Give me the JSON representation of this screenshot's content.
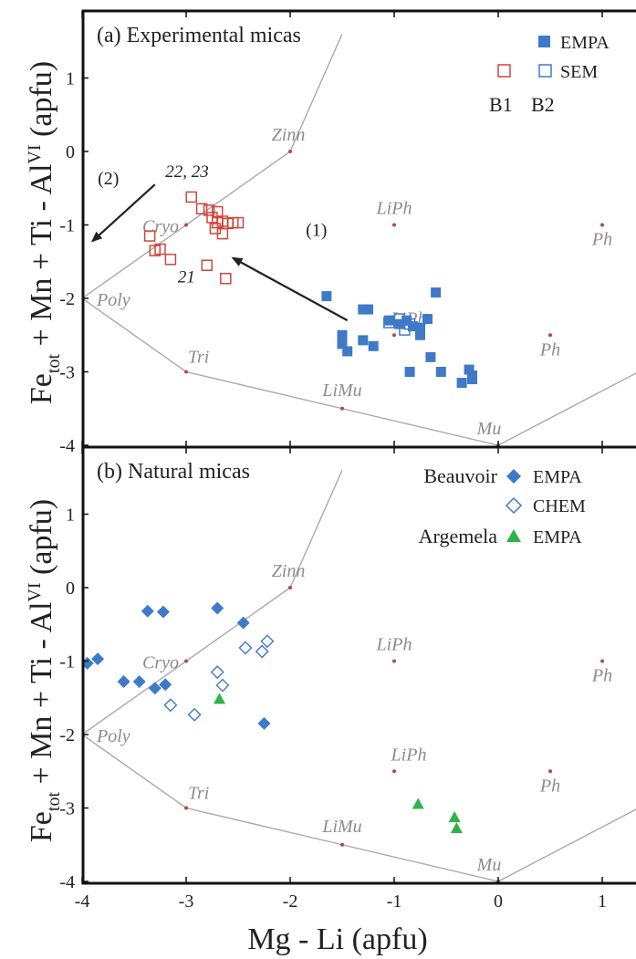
{
  "xlabel": "Mg - Li (apfu)",
  "ylabel": "Fe_tot + Mn + Ti - Al^VI (apfu)",
  "colors": {
    "blue": "#3f7ac9",
    "blue_dark": "#2b63ad",
    "red": "#d0453b",
    "green": "#2fb24a",
    "grey_line": "#aaaaaa",
    "grey_text": "#8c8c8c",
    "node": "#b54a3a"
  },
  "x_ticks": [
    "-4",
    "-3",
    "-2",
    "-1",
    "0",
    "1"
  ],
  "y_ticks": [
    "-4",
    "-3",
    "-2",
    "-1",
    "0",
    "1"
  ],
  "field_boundary": [
    [
      -4,
      -2
    ],
    [
      -3,
      -1
    ],
    [
      -2,
      0
    ],
    [
      -1.5,
      1.6
    ]
  ],
  "lower_boundary": [
    [
      -4,
      -2
    ],
    [
      -3,
      -3
    ],
    [
      -1.5,
      -3.5
    ],
    [
      0,
      -4
    ],
    [
      1.35,
      -3.0
    ]
  ],
  "nodes": [
    {
      "name": "Zinn",
      "x": -2,
      "y": 0
    },
    {
      "name": "Cryo",
      "x": -3,
      "y": -1
    },
    {
      "name": "Poly",
      "x": -4,
      "y": -2
    },
    {
      "name": "Tri",
      "x": -3,
      "y": -3
    },
    {
      "name": "LiMu",
      "x": -1.5,
      "y": -3.5
    },
    {
      "name": "Mu",
      "x": 0,
      "y": -4
    },
    {
      "name": "LiPh",
      "x": -1,
      "y": -1
    },
    {
      "name": "LiPh",
      "x": -1,
      "y": -2.5
    },
    {
      "name": "Ph",
      "x": 1,
      "y": -1
    },
    {
      "name": "Ph",
      "x": 0.5,
      "y": -2.5
    }
  ],
  "chart_data": [
    {
      "type": "scatter",
      "title": "(a) Experimental micas",
      "xlabel": "Mg - Li (apfu)",
      "ylabel": "Fe_tot + Mn + Ti - Al^VI (apfu)",
      "xlim": [
        -4,
        1.35
      ],
      "ylim": [
        -4,
        1.8
      ],
      "legend": {
        "placement": "top-right",
        "entries": [
          "EMPA",
          "SEM"
        ],
        "run_labels": [
          "B1",
          "B2"
        ]
      },
      "annotations": [
        "(1)",
        "(2)",
        "22, 23",
        "21"
      ],
      "arrows": [
        {
          "label": "(1)",
          "from": [
            -1.45,
            -2.3
          ],
          "to": [
            -2.55,
            -1.45
          ]
        },
        {
          "label": "(2)",
          "from": [
            -3.3,
            -0.45
          ],
          "to": [
            -3.9,
            -1.22
          ]
        }
      ],
      "series": [
        {
          "name": "EMPA",
          "run": "B2",
          "marker": "filled-square",
          "color": "blue",
          "points": [
            [
              -1.65,
              -1.97
            ],
            [
              -1.3,
              -2.15
            ],
            [
              -1.25,
              -2.15
            ],
            [
              -1.5,
              -2.5
            ],
            [
              -1.5,
              -2.62
            ],
            [
              -1.45,
              -2.72
            ],
            [
              -1.3,
              -2.57
            ],
            [
              -1.2,
              -2.65
            ],
            [
              -1.05,
              -2.3
            ],
            [
              -0.95,
              -2.35
            ],
            [
              -0.88,
              -2.3
            ],
            [
              -0.82,
              -2.38
            ],
            [
              -0.75,
              -2.4
            ],
            [
              -0.75,
              -2.5
            ],
            [
              -0.68,
              -2.28
            ],
            [
              -0.6,
              -1.92
            ],
            [
              -0.65,
              -2.8
            ],
            [
              -0.85,
              -3.0
            ],
            [
              -0.55,
              -3.0
            ],
            [
              -0.35,
              -3.15
            ],
            [
              -0.28,
              -2.97
            ],
            [
              -0.25,
              -3.1
            ],
            [
              -0.25,
              -3.05
            ]
          ]
        },
        {
          "name": "SEM",
          "run": "B2",
          "marker": "open-square",
          "color": "blue",
          "points": [
            [
              -1.05,
              -2.33
            ],
            [
              -0.95,
              -2.28
            ],
            [
              -0.9,
              -2.43
            ],
            [
              -0.85,
              -2.35
            ]
          ]
        },
        {
          "name": "SEM",
          "run": "B1",
          "marker": "open-square",
          "color": "red",
          "points": [
            [
              -2.95,
              -0.62
            ],
            [
              -2.85,
              -0.78
            ],
            [
              -2.78,
              -0.8
            ],
            [
              -2.75,
              -0.9
            ],
            [
              -2.7,
              -0.82
            ],
            [
              -2.7,
              -0.97
            ],
            [
              -2.72,
              -1.05
            ],
            [
              -2.65,
              -0.95
            ],
            [
              -2.6,
              -0.98
            ],
            [
              -2.55,
              -0.97
            ],
            [
              -2.5,
              -0.97
            ],
            [
              -2.65,
              -1.12
            ],
            [
              -3.35,
              -1.15
            ],
            [
              -3.3,
              -1.35
            ],
            [
              -3.25,
              -1.33
            ],
            [
              -3.15,
              -1.47
            ],
            [
              -2.8,
              -1.55
            ],
            [
              -2.62,
              -1.73
            ]
          ]
        }
      ]
    },
    {
      "type": "scatter",
      "title": "(b) Natural micas",
      "xlabel": "Mg - Li (apfu)",
      "ylabel": "Fe_tot + Mn + Ti - Al^VI (apfu)",
      "xlim": [
        -4,
        1.35
      ],
      "ylim": [
        -4,
        1.8
      ],
      "legend": {
        "placement": "top-right",
        "entries": [
          "EMPA",
          "CHEM",
          "EMPA"
        ],
        "groups": [
          "Beauvoir",
          "Argemela"
        ]
      },
      "series": [
        {
          "name": "EMPA",
          "group": "Beauvoir",
          "marker": "filled-diamond",
          "color": "blue",
          "points": [
            [
              -3.95,
              -1.03
            ],
            [
              -3.85,
              -0.97
            ],
            [
              -3.6,
              -1.28
            ],
            [
              -3.45,
              -1.28
            ],
            [
              -3.3,
              -1.37
            ],
            [
              -3.2,
              -1.32
            ],
            [
              -3.37,
              -0.32
            ],
            [
              -3.22,
              -0.33
            ],
            [
              -2.7,
              -0.28
            ],
            [
              -2.45,
              -0.48
            ],
            [
              -2.25,
              -1.85
            ]
          ]
        },
        {
          "name": "CHEM",
          "group": "Beauvoir",
          "marker": "open-diamond",
          "color": "blue",
          "points": [
            [
              -3.15,
              -1.6
            ],
            [
              -2.92,
              -1.73
            ],
            [
              -2.7,
              -1.15
            ],
            [
              -2.65,
              -1.33
            ],
            [
              -2.43,
              -0.82
            ],
            [
              -2.27,
              -0.87
            ],
            [
              -2.22,
              -0.73
            ]
          ]
        },
        {
          "name": "EMPA",
          "group": "Argemela",
          "marker": "filled-triangle",
          "color": "green",
          "points": [
            [
              -2.68,
              -1.52
            ],
            [
              -0.77,
              -2.95
            ],
            [
              -0.42,
              -3.13
            ],
            [
              -0.4,
              -3.28
            ]
          ]
        }
      ]
    }
  ]
}
